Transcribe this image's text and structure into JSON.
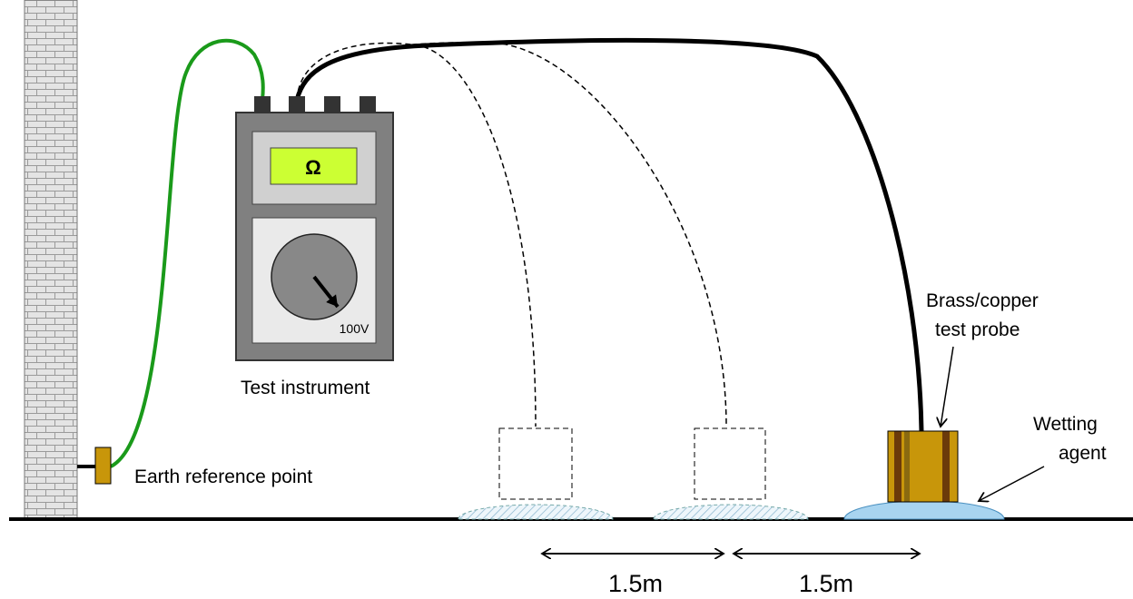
{
  "display": {
    "symbol": "Ω"
  },
  "dial": {
    "label": "100V"
  },
  "instrument": {
    "label": "Test instrument"
  },
  "earth_point": {
    "label": "Earth reference point"
  },
  "probe": {
    "label_lines": [
      "Brass/copper",
      "test probe"
    ]
  },
  "wetting_agent": {
    "label_lines": [
      "Wetting",
      "agent"
    ]
  },
  "distances": [
    "1.5m",
    "1.5m"
  ]
}
